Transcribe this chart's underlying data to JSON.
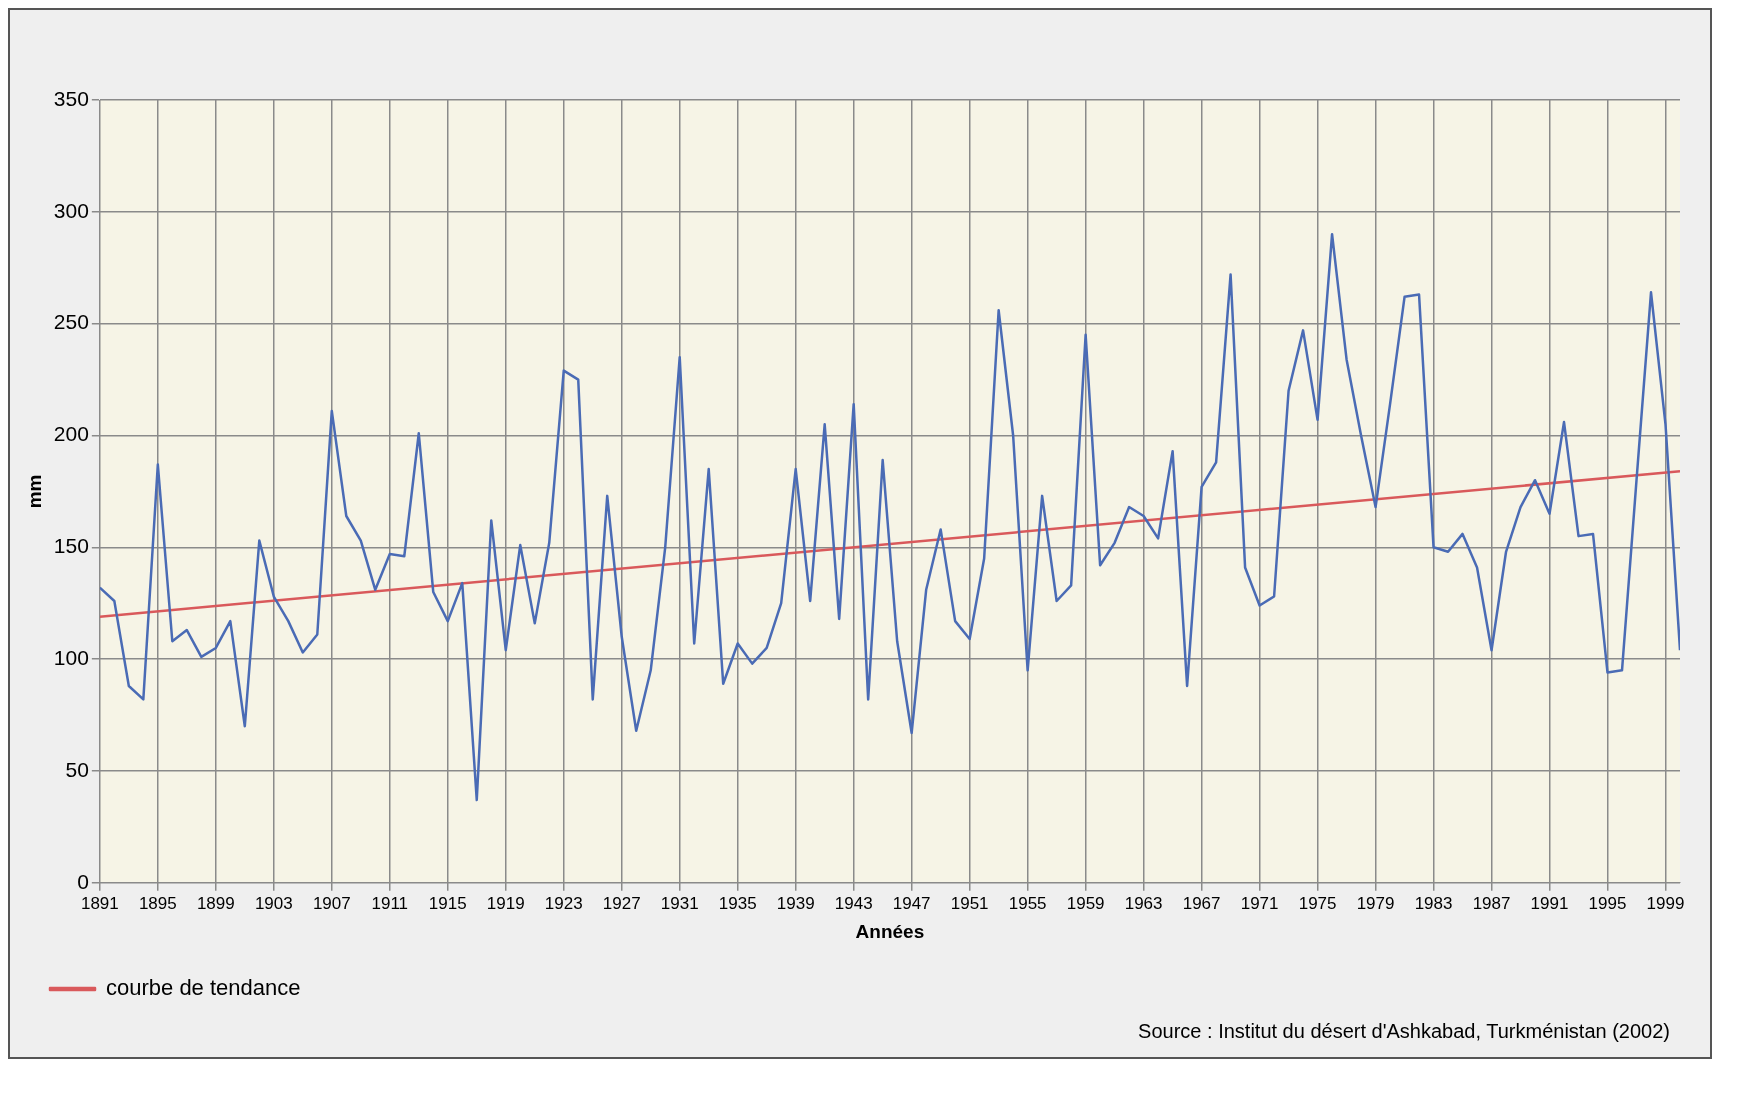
{
  "chart_data": {
    "type": "line",
    "xlabel": "Années",
    "ylabel": "mm",
    "x": [
      1891,
      1892,
      1893,
      1894,
      1895,
      1896,
      1897,
      1898,
      1899,
      1900,
      1901,
      1902,
      1903,
      1904,
      1905,
      1906,
      1907,
      1908,
      1909,
      1910,
      1911,
      1912,
      1913,
      1914,
      1915,
      1916,
      1917,
      1918,
      1919,
      1920,
      1921,
      1922,
      1923,
      1924,
      1925,
      1926,
      1927,
      1928,
      1929,
      1930,
      1931,
      1932,
      1933,
      1934,
      1935,
      1936,
      1937,
      1938,
      1939,
      1940,
      1941,
      1942,
      1943,
      1944,
      1945,
      1946,
      1947,
      1948,
      1949,
      1950,
      1951,
      1952,
      1953,
      1954,
      1955,
      1956,
      1957,
      1958,
      1959,
      1960,
      1961,
      1962,
      1963,
      1964,
      1965,
      1966,
      1967,
      1968,
      1969,
      1970,
      1971,
      1972,
      1973,
      1974,
      1975,
      1976,
      1977,
      1978,
      1979,
      1980,
      1981,
      1982,
      1983,
      1984,
      1985,
      1986,
      1987,
      1988,
      1989,
      1990,
      1991,
      1992,
      1993,
      1994,
      1995,
      1996,
      1997,
      1998,
      1999,
      2000
    ],
    "series": [
      {
        "color": "#4a6bb5",
        "values": [
          132,
          126,
          88,
          82,
          187,
          108,
          113,
          101,
          105,
          117,
          70,
          153,
          128,
          117,
          103,
          111,
          211,
          164,
          153,
          131,
          147,
          146,
          201,
          130,
          117,
          134,
          37,
          162,
          104,
          151,
          116,
          152,
          229,
          225,
          82,
          173,
          110,
          68,
          95,
          150,
          235,
          107,
          185,
          89,
          107,
          98,
          105,
          125,
          185,
          126,
          205,
          118,
          214,
          82,
          189,
          108,
          67,
          131,
          158,
          117,
          109,
          145,
          256,
          200,
          95,
          173,
          126,
          133,
          245,
          142,
          152,
          168,
          164,
          154,
          193,
          88,
          177,
          188,
          272,
          141,
          124,
          128,
          220,
          247,
          207,
          290,
          234,
          200,
          168,
          214,
          262,
          263,
          150,
          148,
          156,
          141,
          104,
          148,
          168,
          180,
          165,
          206,
          155,
          156,
          94,
          95,
          180,
          264,
          205,
          104
        ]
      },
      {
        "name": "courbe de tendance",
        "type": "line",
        "color": "#d9595b",
        "x": [
          1891,
          2000
        ],
        "values": [
          119,
          184
        ]
      }
    ],
    "xlim": [
      1891,
      2000
    ],
    "xticks": [
      1891,
      1895,
      1899,
      1903,
      1907,
      1911,
      1915,
      1919,
      1923,
      1927,
      1931,
      1935,
      1939,
      1943,
      1947,
      1951,
      1955,
      1959,
      1963,
      1967,
      1971,
      1975,
      1979,
      1983,
      1987,
      1991,
      1995,
      1999
    ],
    "ylim": [
      0,
      350
    ],
    "yticks": [
      0,
      50,
      100,
      150,
      200,
      250,
      300,
      350
    ],
    "grid": true,
    "legend": "bottom left",
    "marker": "none",
    "line_style": "solid",
    "annotations": [
      "Source : Institut du désert d'Ashkabad, Turkménistan (2002)"
    ]
  }
}
